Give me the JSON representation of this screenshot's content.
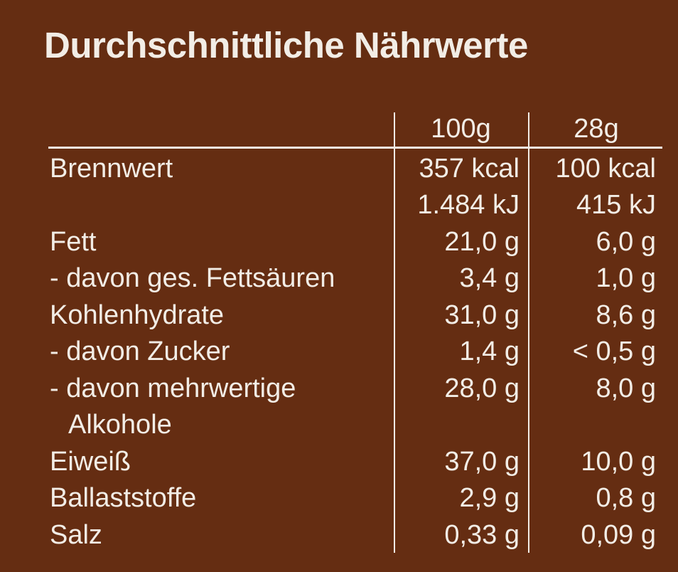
{
  "title": "Durchschnittliche Nährwerte",
  "colors": {
    "background": "#652d12",
    "text": "#f2ede6",
    "divider": "#f2ede6"
  },
  "table": {
    "col_headers": {
      "per100g": "100g",
      "per28g": "28g"
    },
    "rows": [
      {
        "label": "Brennwert",
        "per100g": "357 kcal",
        "per28g": "100 kcal"
      },
      {
        "label": "",
        "per100g": "1.484 kJ",
        "per28g": "415 kJ"
      },
      {
        "label": "Fett",
        "per100g": "21,0 g",
        "per28g": "6,0 g"
      },
      {
        "label": "- davon ges. Fettsäuren",
        "per100g": "3,4 g",
        "per28g": "1,0 g"
      },
      {
        "label": "Kohlenhydrate",
        "per100g": "31,0 g",
        "per28g": "8,6 g"
      },
      {
        "label": "- davon Zucker",
        "per100g": "1,4 g",
        "per28g": "< 0,5 g"
      },
      {
        "label": "- davon mehrwertige",
        "per100g": "28,0 g",
        "per28g": "8,0 g"
      },
      {
        "label": "Alkohole",
        "per100g": "",
        "per28g": ""
      },
      {
        "label": "Eiweiß",
        "per100g": "37,0 g",
        "per28g": "10,0 g"
      },
      {
        "label": "Ballaststoffe",
        "per100g": "2,9 g",
        "per28g": "0,8 g"
      },
      {
        "label": "Salz",
        "per100g": "0,33 g",
        "per28g": "0,09 g"
      }
    ]
  }
}
